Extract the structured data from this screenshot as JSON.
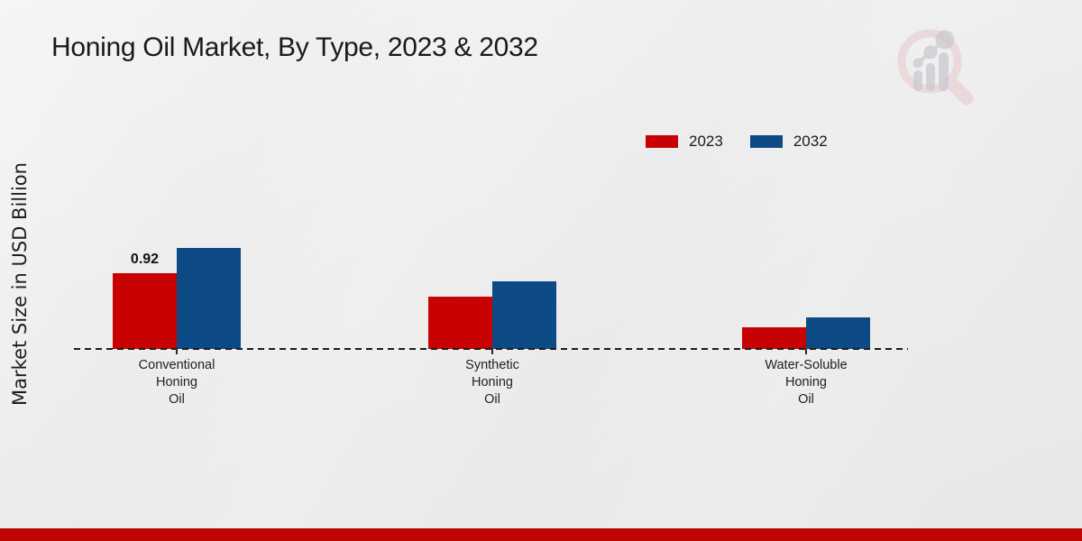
{
  "title": "Honing Oil Market, By Type, 2023 & 2032",
  "ylabel": "Market Size in USD Billion",
  "legend": [
    {
      "label": "2023",
      "color": "#c80202"
    },
    {
      "label": "2032",
      "color": "#0d4a85"
    }
  ],
  "colors": {
    "red_2023": "#c80202",
    "blue_2032": "#0d4a85",
    "footer_bar": "#c00404",
    "axis_line": "#1c1c1c",
    "background": "#ebebeb"
  },
  "logo": {
    "icon": "magnifier-bar-chart-watermark"
  },
  "chart_data": {
    "type": "bar",
    "title": "Honing Oil Market, By Type, 2023 & 2032",
    "xlabel": "",
    "ylabel": "Market Size in USD Billion",
    "categories": [
      "Conventional Honing Oil",
      "Synthetic Honing Oil",
      "Water-Soluble Honing Oil"
    ],
    "series": [
      {
        "name": "2023",
        "color": "#c80202",
        "values": [
          0.92,
          0.64,
          0.26
        ],
        "labels": [
          "0.92",
          "",
          ""
        ]
      },
      {
        "name": "2032",
        "color": "#0d4a85",
        "values": [
          1.23,
          0.82,
          0.38
        ],
        "labels": [
          "",
          "",
          ""
        ]
      }
    ],
    "ylim": [
      0,
      1.4
    ],
    "grid": false,
    "y_axis_ticks_visible": false,
    "baseline_style": "dashed",
    "legend_position": "top-right"
  }
}
